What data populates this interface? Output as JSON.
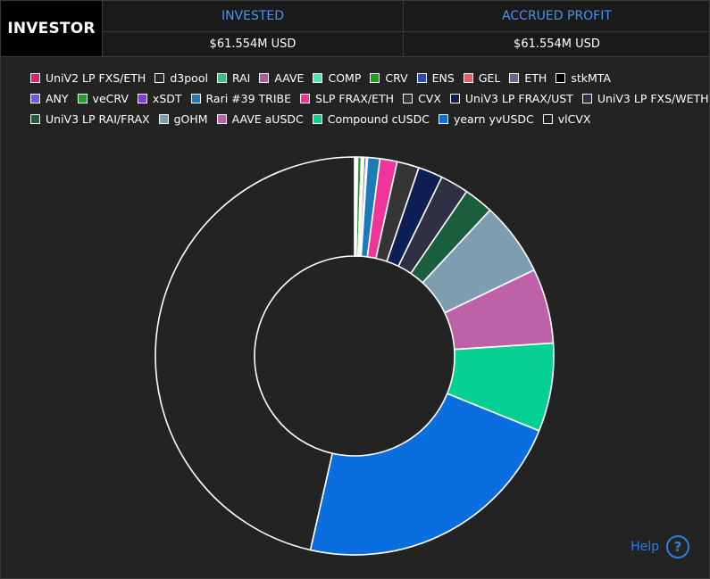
{
  "header": {
    "title": "INVESTOR",
    "invested_label": "INVESTED",
    "invested_value": "$61.554M USD",
    "profit_label": "ACCRUED PROFIT",
    "profit_value": "$61.554M USD"
  },
  "help": {
    "label": "Help",
    "icon": "question-circle-icon"
  },
  "colors": {
    "background": "#232323",
    "header_background": "#1a1a1a",
    "accent": "#4a93e8",
    "slice_border": "#ffffff"
  },
  "chart_data": {
    "type": "pie",
    "donut": true,
    "series": [
      {
        "name": "UniV2 LP FXS/ETH",
        "color": "#e0206e",
        "value": 0.05
      },
      {
        "name": "d3pool",
        "color": "#2a2a2a",
        "value": 0.05
      },
      {
        "name": "RAI",
        "color": "#3dbd84",
        "value": 0.05
      },
      {
        "name": "AAVE",
        "color": "#b1589c",
        "value": 0.05
      },
      {
        "name": "COMP",
        "color": "#46e8b6",
        "value": 0.05
      },
      {
        "name": "CRV",
        "color": "#1f9d1f",
        "value": 0.3
      },
      {
        "name": "ENS",
        "color": "#2b4ea8",
        "value": 0.05
      },
      {
        "name": "GEL",
        "color": "#e26060",
        "value": 0.05
      },
      {
        "name": "ETH",
        "color": "#626a87",
        "value": 0.05
      },
      {
        "name": "stkMTA",
        "color": "#000000",
        "value": 0.05
      },
      {
        "name": "ANY",
        "color": "#6a5ae0",
        "value": 0.2
      },
      {
        "name": "veCRV",
        "color": "#24a02a",
        "value": 0.05
      },
      {
        "name": "xSDT",
        "color": "#8a35e0",
        "value": 0.05
      },
      {
        "name": "Rari #39 TRIBE",
        "color": "#1b7cb8",
        "value": 1.0
      },
      {
        "name": "SLP FRAX/ETH",
        "color": "#f0359a",
        "value": 1.4
      },
      {
        "name": "CVX",
        "color": "#353535",
        "value": 1.8
      },
      {
        "name": "UniV3 LP FRAX/UST",
        "color": "#0d1f55",
        "value": 2.0
      },
      {
        "name": "UniV3 LP FXS/WETH",
        "color": "#2f2f45",
        "value": 2.3
      },
      {
        "name": "UniV3 LP RAI/FRAX",
        "color": "#1b5e3e",
        "value": 2.4
      },
      {
        "name": "gOHM",
        "color": "#7d9eb0",
        "value": 6.0
      },
      {
        "name": "AAVE aUSDC",
        "color": "#bf61a6",
        "value": 6.1
      },
      {
        "name": "Compound cUSDC",
        "color": "#07d192",
        "value": 7.2
      },
      {
        "name": "yearn yvUSDC",
        "color": "#0b6ede",
        "value": 22.5
      },
      {
        "name": "vlCVX",
        "color": "#232323",
        "value": 46.6
      }
    ]
  }
}
